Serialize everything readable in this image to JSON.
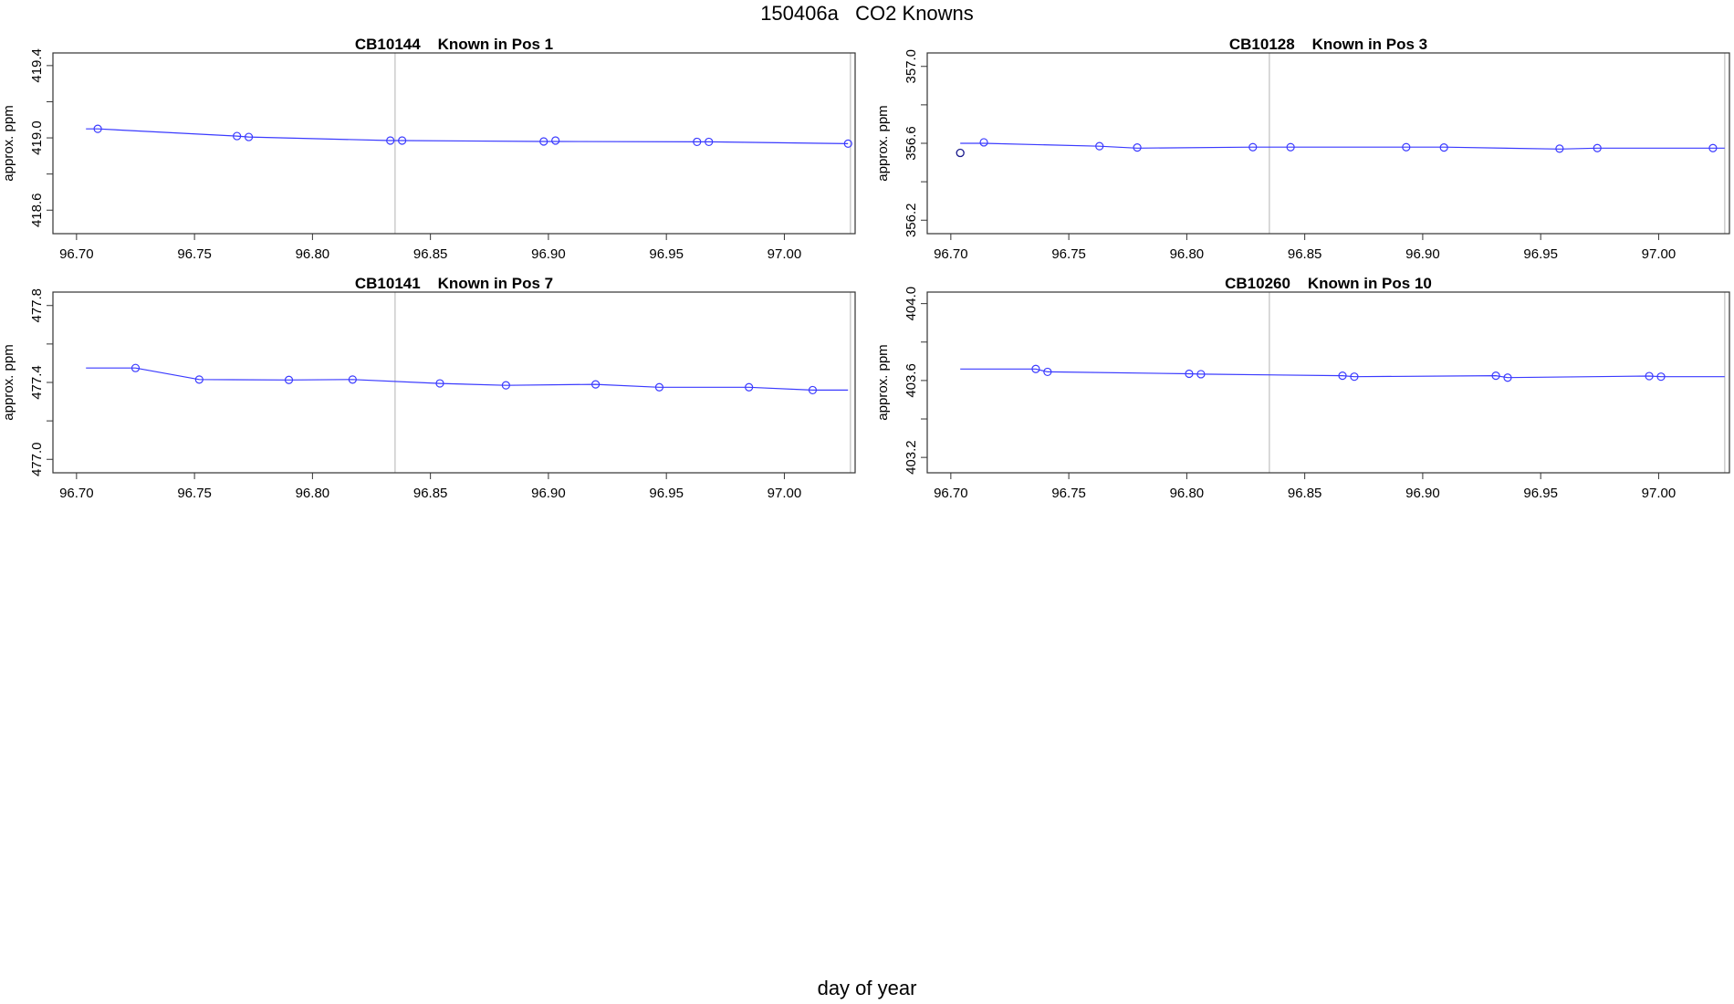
{
  "figure": {
    "title": "150406a   CO2 Knowns",
    "xlabel": "day of year"
  },
  "colors": {
    "series": "#3a3aff",
    "outlier": "#1a1a8c",
    "vline": "#cccccc",
    "frame": "#333333"
  },
  "chart_data": [
    {
      "type": "line",
      "title": "CB10144    Known in Pos 1",
      "ylabel": "approx. ppm",
      "xlim": [
        96.69,
        97.03
      ],
      "ylim": [
        418.47,
        419.47
      ],
      "xticks": [
        "96.70",
        "96.75",
        "96.80",
        "96.85",
        "96.90",
        "96.95",
        "97.00"
      ],
      "yticks": [
        "418.6",
        "419.0",
        "419.4"
      ],
      "vlines": [
        96.835,
        97.028
      ],
      "line": {
        "x": [
          96.704,
          96.709,
          96.768,
          96.773,
          96.833,
          96.838,
          96.898,
          96.903,
          96.963,
          96.968,
          97.027
        ],
        "y": [
          419.05,
          419.05,
          419.01,
          419.005,
          418.985,
          418.985,
          418.98,
          418.98,
          418.978,
          418.978,
          418.968
        ]
      },
      "points": {
        "x": [
          96.709,
          96.768,
          96.773,
          96.833,
          96.838,
          96.898,
          96.903,
          96.963,
          96.968,
          97.027
        ],
        "y": [
          419.05,
          419.01,
          419.005,
          418.985,
          418.985,
          418.98,
          418.985,
          418.978,
          418.978,
          418.968
        ]
      },
      "outliers": {
        "x": [],
        "y": []
      }
    },
    {
      "type": "line",
      "title": "CB10128    Known in Pos 3",
      "ylabel": "approx. ppm",
      "xlim": [
        96.69,
        97.03
      ],
      "ylim": [
        356.13,
        357.07
      ],
      "xticks": [
        "96.70",
        "96.75",
        "96.80",
        "96.85",
        "96.90",
        "96.95",
        "97.00"
      ],
      "yticks": [
        "356.2",
        "356.6",
        "357.0"
      ],
      "vlines": [
        96.835,
        97.028
      ],
      "line": {
        "x": [
          96.704,
          96.714,
          96.763,
          96.779,
          96.828,
          96.844,
          96.893,
          96.909,
          96.958,
          96.974,
          97.023,
          97.028
        ],
        "y": [
          356.6,
          356.6,
          356.585,
          356.575,
          356.58,
          356.58,
          356.58,
          356.58,
          356.57,
          356.575,
          356.575,
          356.575
        ]
      },
      "points": {
        "x": [
          96.714,
          96.763,
          96.779,
          96.828,
          96.844,
          96.893,
          96.909,
          96.958,
          96.974,
          97.023
        ],
        "y": [
          356.605,
          356.585,
          356.578,
          356.58,
          356.58,
          356.58,
          356.578,
          356.572,
          356.575,
          356.575
        ]
      },
      "outliers": {
        "x": [
          96.704
        ],
        "y": [
          356.55
        ]
      }
    },
    {
      "type": "line",
      "title": "CB10141    Known in Pos 7",
      "ylabel": "approx. ppm",
      "xlim": [
        96.69,
        97.03
      ],
      "ylim": [
        476.93,
        477.87
      ],
      "xticks": [
        "96.70",
        "96.75",
        "96.80",
        "96.85",
        "96.90",
        "96.95",
        "97.00"
      ],
      "yticks": [
        "477.0",
        "477.4",
        "477.8"
      ],
      "vlines": [
        96.835,
        97.028
      ],
      "line": {
        "x": [
          96.704,
          96.725,
          96.752,
          96.79,
          96.817,
          96.854,
          96.882,
          96.92,
          96.947,
          96.985,
          97.012,
          97.027
        ],
        "y": [
          477.475,
          477.475,
          477.415,
          477.413,
          477.415,
          477.395,
          477.385,
          477.39,
          477.375,
          477.375,
          477.36,
          477.36
        ]
      },
      "points": {
        "x": [
          96.725,
          96.752,
          96.79,
          96.817,
          96.854,
          96.882,
          96.92,
          96.947,
          96.985,
          97.012
        ],
        "y": [
          477.475,
          477.415,
          477.413,
          477.415,
          477.395,
          477.385,
          477.39,
          477.375,
          477.375,
          477.36
        ]
      },
      "outliers": {
        "x": [],
        "y": []
      }
    },
    {
      "type": "line",
      "title": "CB10260    Known in Pos 10",
      "ylabel": "approx. ppm",
      "xlim": [
        96.69,
        97.03
      ],
      "ylim": [
        403.12,
        404.06
      ],
      "xticks": [
        "96.70",
        "96.75",
        "96.80",
        "96.85",
        "96.90",
        "96.95",
        "97.00"
      ],
      "yticks": [
        "403.2",
        "403.6",
        "404.0"
      ],
      "vlines": [
        96.835,
        97.028
      ],
      "line": {
        "x": [
          96.704,
          96.736,
          96.741,
          96.801,
          96.806,
          96.866,
          96.871,
          96.931,
          96.936,
          96.996,
          97.001,
          97.028
        ],
        "y": [
          403.66,
          403.66,
          403.645,
          403.635,
          403.633,
          403.625,
          403.62,
          403.625,
          403.615,
          403.623,
          403.62,
          403.62
        ]
      },
      "points": {
        "x": [
          96.736,
          96.741,
          96.801,
          96.806,
          96.866,
          96.871,
          96.931,
          96.936,
          96.996,
          97.001
        ],
        "y": [
          403.66,
          403.645,
          403.635,
          403.633,
          403.625,
          403.62,
          403.625,
          403.615,
          403.623,
          403.62
        ]
      },
      "outliers": {
        "x": [],
        "y": []
      }
    }
  ]
}
